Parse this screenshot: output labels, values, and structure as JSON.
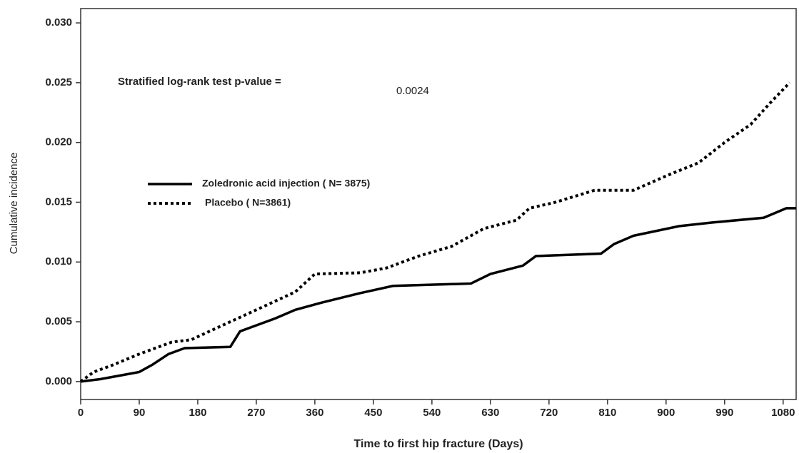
{
  "chart_data": {
    "type": "line",
    "x_label": "Time to first hip fracture (Days)",
    "y_label": "Cumulative incidence",
    "annotations": [
      "Stratified log-rank test p-value =",
      "0.0024"
    ],
    "xlim": [
      0,
      1100
    ],
    "ylim": [
      -0.0015,
      0.0312
    ],
    "xticks": [
      0,
      90,
      180,
      270,
      360,
      450,
      540,
      630,
      720,
      810,
      900,
      990,
      1080
    ],
    "yticks": [
      {
        "value": 0,
        "label": "0.000"
      },
      {
        "value": 0.005,
        "label": "0.005"
      },
      {
        "value": 0.01,
        "label": "0.010"
      },
      {
        "value": 0.015,
        "label": "0.015"
      },
      {
        "value": 0.02,
        "label": "0.020"
      },
      {
        "value": 0.025,
        "label": "0.025"
      },
      {
        "value": 0.03,
        "label": "0.030"
      }
    ],
    "grid": false,
    "legend": "center-left",
    "series": [
      {
        "name": "Zoledronic acid injection ( N= 3875)",
        "color": "#000000",
        "line_style": "solid",
        "x": [
          0,
          30,
          60,
          90,
          110,
          135,
          160,
          230,
          245,
          265,
          300,
          330,
          370,
          430,
          480,
          600,
          630,
          680,
          700,
          800,
          820,
          850,
          920,
          970,
          1050,
          1085,
          1100
        ],
        "values": [
          0,
          0.0002,
          0.0005,
          0.0008,
          0.0014,
          0.0023,
          0.0028,
          0.0029,
          0.0042,
          0.0046,
          0.0053,
          0.006,
          0.0066,
          0.0074,
          0.008,
          0.0082,
          0.009,
          0.0097,
          0.0105,
          0.0107,
          0.0115,
          0.0122,
          0.013,
          0.0133,
          0.0137,
          0.0145,
          0.0145
        ]
      },
      {
        "name": "Placebo ( N=3861)",
        "color": "#000000",
        "line_style": "dotted",
        "x": [
          0,
          20,
          50,
          90,
          110,
          140,
          170,
          250,
          330,
          360,
          430,
          470,
          520,
          570,
          620,
          670,
          690,
          730,
          790,
          850,
          900,
          950,
          990,
          1030,
          1060,
          1090
        ],
        "values": [
          0,
          0.0008,
          0.0014,
          0.0023,
          0.0027,
          0.0033,
          0.0035,
          0.0055,
          0.0075,
          0.009,
          0.0091,
          0.0095,
          0.0105,
          0.0113,
          0.0128,
          0.0135,
          0.0145,
          0.015,
          0.016,
          0.016,
          0.0172,
          0.0183,
          0.02,
          0.0215,
          0.0233,
          0.025
        ]
      }
    ]
  }
}
